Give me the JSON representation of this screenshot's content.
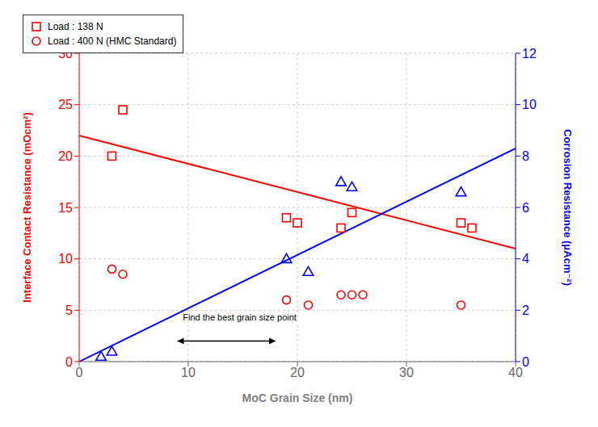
{
  "chart_data": {
    "type": "scatter",
    "title": "",
    "xlabel": "MoC Grain Size (nm)",
    "ylabel": "Interface Contact Resistance (mOcm²)",
    "y2label": "Corrosion Resistance (μAcm⁻²)",
    "xlim": [
      0,
      40
    ],
    "ylim": [
      0,
      30
    ],
    "y2lim": [
      0,
      12
    ],
    "xticks": [
      0,
      10,
      20,
      30,
      40
    ],
    "yticks": [
      0,
      5,
      10,
      15,
      20,
      25,
      30
    ],
    "y2ticks": [
      0,
      2,
      4,
      6,
      8,
      10,
      12
    ],
    "grid": true,
    "legend": "upper right",
    "series": [
      {
        "name": "Load : 138 N",
        "type": "scatter",
        "marker": "square",
        "color": "#FF0000",
        "x": [
          3,
          4,
          19,
          20,
          24,
          25,
          35,
          36
        ],
        "values": [
          20,
          24.5,
          14,
          13.5,
          13,
          14.5,
          13.5,
          13
        ]
      },
      {
        "name": "Load : 400 N (HMC Standard)",
        "type": "scatter",
        "marker": "circle",
        "color": "#FF0000",
        "x": [
          3,
          4,
          19,
          21,
          24,
          25,
          26,
          35
        ],
        "values": [
          9,
          8.5,
          6,
          5.5,
          6.5,
          6.5,
          6.5,
          5.5
        ]
      },
      {
        "type": "scatter",
        "marker": "triangle",
        "color": "#0000FF",
        "axis": "y2",
        "x": [
          2,
          3,
          19,
          21,
          24,
          25,
          35
        ],
        "values": [
          0.2,
          0.4,
          4.0,
          3.5,
          7.0,
          6.8,
          6.6
        ]
      },
      {
        "type": "line",
        "color": "#FF0000",
        "x": [
          0,
          40
        ],
        "values": [
          22,
          11
        ]
      },
      {
        "type": "line",
        "color": "#0000FF",
        "axis": "y2",
        "x": [
          0,
          40
        ],
        "values": [
          0,
          8.3
        ]
      }
    ],
    "annotations": [
      {
        "text": "Find the best grain size point",
        "x": 9.5,
        "y": 3.8,
        "arrow": {
          "x_start": 9,
          "x_end": 18,
          "y": 2.0
        }
      }
    ]
  }
}
